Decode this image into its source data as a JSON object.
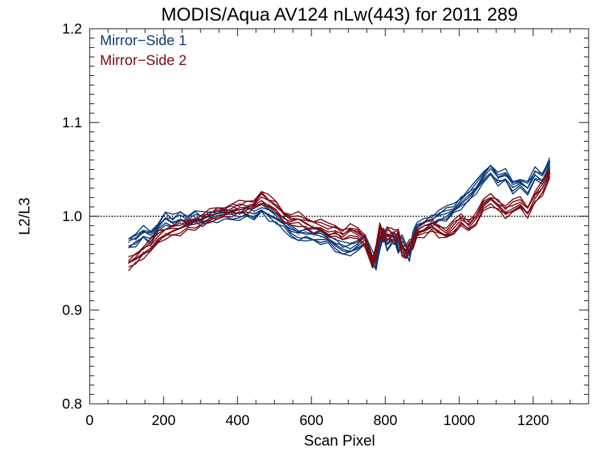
{
  "chart_data": {
    "type": "line",
    "title": "MODIS/Aqua AV124 nLw(443) for 2011 289",
    "xlabel": "Scan Pixel",
    "ylabel": "L2/L3",
    "xlim": [
      0,
      1350
    ],
    "ylim": [
      0.8,
      1.2
    ],
    "xticks": [
      0,
      200,
      400,
      600,
      800,
      1000,
      1200
    ],
    "xtick_labels": [
      "0",
      "200",
      "400",
      "600",
      "800",
      "1000",
      "1200"
    ],
    "yticks": [
      0.8,
      0.9,
      1.0,
      1.1,
      1.2
    ],
    "ytick_labels": [
      "0.8",
      "0.9",
      "1.0",
      "1.1",
      "1.2"
    ],
    "reference_line": 1.0,
    "grid": false,
    "legend_position": "top-left",
    "x": [
      105,
      125,
      145,
      165,
      185,
      205,
      225,
      245,
      265,
      285,
      305,
      325,
      345,
      365,
      385,
      405,
      425,
      445,
      465,
      485,
      505,
      525,
      545,
      565,
      585,
      605,
      625,
      645,
      665,
      685,
      705,
      725,
      745,
      765,
      775,
      785,
      795,
      805,
      815,
      825,
      835,
      845,
      855,
      865,
      875,
      885,
      905,
      925,
      945,
      965,
      985,
      1005,
      1025,
      1045,
      1065,
      1085,
      1105,
      1125,
      1145,
      1165,
      1185,
      1205,
      1225,
      1245
    ],
    "series": [
      {
        "name": "Mirror−Side 1",
        "color": "#0d3b7a",
        "values": [
          0.972,
          0.975,
          0.982,
          0.978,
          0.988,
          0.998,
          0.994,
          0.999,
          0.996,
          0.999,
          0.997,
          0.999,
          1.001,
          1.002,
          1.003,
          1.002,
          1.005,
          1.004,
          1.009,
          1.003,
          0.998,
          0.992,
          0.983,
          0.98,
          0.981,
          0.979,
          0.978,
          0.976,
          0.97,
          0.965,
          0.964,
          0.97,
          0.975,
          0.955,
          0.948,
          0.972,
          0.982,
          0.97,
          0.975,
          0.978,
          0.968,
          0.972,
          0.965,
          0.958,
          0.978,
          0.985,
          0.992,
          0.995,
          1.0,
          1.003,
          1.008,
          1.015,
          1.022,
          1.03,
          1.042,
          1.05,
          1.04,
          1.043,
          1.032,
          1.035,
          1.03,
          1.045,
          1.04,
          1.058
        ]
      },
      {
        "name": "Mirror−Side 2",
        "color": "#7a0a14",
        "values": [
          0.95,
          0.955,
          0.962,
          0.968,
          0.978,
          0.982,
          0.985,
          0.987,
          0.99,
          0.993,
          0.996,
          1.0,
          1.003,
          1.005,
          1.007,
          1.009,
          1.01,
          1.013,
          1.02,
          1.015,
          1.01,
          1.0,
          0.995,
          0.997,
          0.993,
          0.99,
          0.99,
          0.985,
          0.985,
          0.98,
          0.985,
          0.98,
          0.975,
          0.95,
          0.962,
          0.985,
          0.978,
          0.983,
          0.98,
          0.978,
          0.982,
          0.965,
          0.96,
          0.968,
          0.972,
          0.982,
          0.985,
          0.99,
          0.985,
          0.982,
          0.988,
          0.996,
          0.99,
          0.998,
          1.01,
          1.018,
          1.012,
          1.005,
          1.01,
          1.015,
          1.005,
          1.02,
          1.03,
          1.045
        ]
      }
    ]
  }
}
